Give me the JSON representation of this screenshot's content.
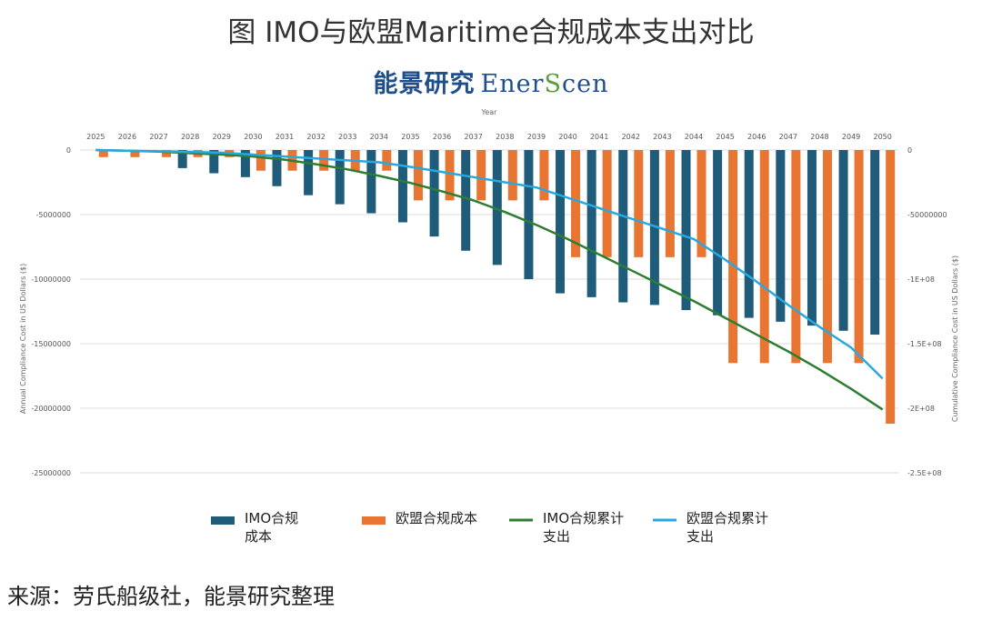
{
  "title": "图 IMO与欧盟Maritime合规成本支出对比",
  "logo": {
    "cn": "能景研究",
    "en_pre": "Ener",
    "en_accent": "S",
    "en_post": "cen"
  },
  "source": "来源：劳氏船级社，能景研究整理",
  "chart_data": {
    "type": "bar",
    "xlabel": "Year",
    "ylabel": "Annual Compliance Cost in US Dollars ($)",
    "y2label": "Cumulative Compliance Cost in US Dollars ($)",
    "categories": [
      "2025",
      "2026",
      "2027",
      "2028",
      "2029",
      "2030",
      "2031",
      "2032",
      "2033",
      "2034",
      "2035",
      "2036",
      "2037",
      "2038",
      "2039",
      "2040",
      "2041",
      "2042",
      "2043",
      "2044",
      "2045",
      "2046",
      "2047",
      "2048",
      "2049",
      "2050"
    ],
    "ylim": [
      -25000000,
      0
    ],
    "y2lim": [
      -250000000,
      0
    ],
    "yticks": [
      0,
      -5000000,
      -10000000,
      -15000000,
      -20000000,
      -25000000
    ],
    "ytick_labels": [
      "0",
      "-5000000",
      "-10000000",
      "-15000000",
      "-20000000",
      "-25000000"
    ],
    "y2ticks": [
      0,
      -50000000,
      -100000000,
      -150000000,
      -200000000,
      -250000000
    ],
    "y2tick_labels": [
      "0",
      "-50000000",
      "-1E+08",
      "-1.5E+08",
      "-2E+08",
      "-2.5E+08"
    ],
    "series": [
      {
        "name": "IMO合规成本",
        "kind": "bar",
        "axis": "left",
        "color": "#1f5c7a",
        "values": [
          0,
          0,
          0,
          -1400000,
          -1800000,
          -2100000,
          -2800000,
          -3500000,
          -4200000,
          -4900000,
          -5600000,
          -6700000,
          -7800000,
          -8900000,
          -10000000,
          -11100000,
          -11400000,
          -11800000,
          -12000000,
          -12400000,
          -12800000,
          -13000000,
          -13300000,
          -13600000,
          -14000000,
          -14300000
        ]
      },
      {
        "name": "欧盟合规成本",
        "kind": "bar",
        "axis": "left",
        "color": "#e87532",
        "values": [
          -550000,
          -550000,
          -550000,
          -550000,
          -550000,
          -1600000,
          -1600000,
          -1600000,
          -1600000,
          -1600000,
          -3900000,
          -3900000,
          -3900000,
          -3900000,
          -3900000,
          -8300000,
          -8300000,
          -8300000,
          -8300000,
          -8300000,
          -16500000,
          -16500000,
          -16500000,
          -16500000,
          -16500000,
          -21200000
        ]
      },
      {
        "name": "IMO合规累计支出",
        "kind": "line",
        "axis": "right",
        "color": "#2e7d32",
        "values": [
          0,
          -500000,
          -1200000,
          -2500000,
          -3500000,
          -5000000,
          -7500000,
          -11000000,
          -15000000,
          -20000000,
          -25500000,
          -32000000,
          -39000000,
          -48000000,
          -58000000,
          -69000000,
          -81000000,
          -93000000,
          -105000000,
          -117000000,
          -130000000,
          -143000000,
          -156000000,
          -170000000,
          -185000000,
          -201000000
        ]
      },
      {
        "name": "欧盟合规累计支出",
        "kind": "line",
        "axis": "right",
        "color": "#29a8e0",
        "values": [
          0,
          -500000,
          -1000000,
          -1500000,
          -2000000,
          -3500000,
          -5000000,
          -6500000,
          -8000000,
          -9500000,
          -13000000,
          -17000000,
          -21000000,
          -25000000,
          -29000000,
          -37000000,
          -45000000,
          -53000000,
          -61000000,
          -69000000,
          -85000000,
          -102000000,
          -120000000,
          -137000000,
          -153000000,
          -177000000
        ]
      }
    ],
    "legend": "bottom",
    "grid": true
  }
}
